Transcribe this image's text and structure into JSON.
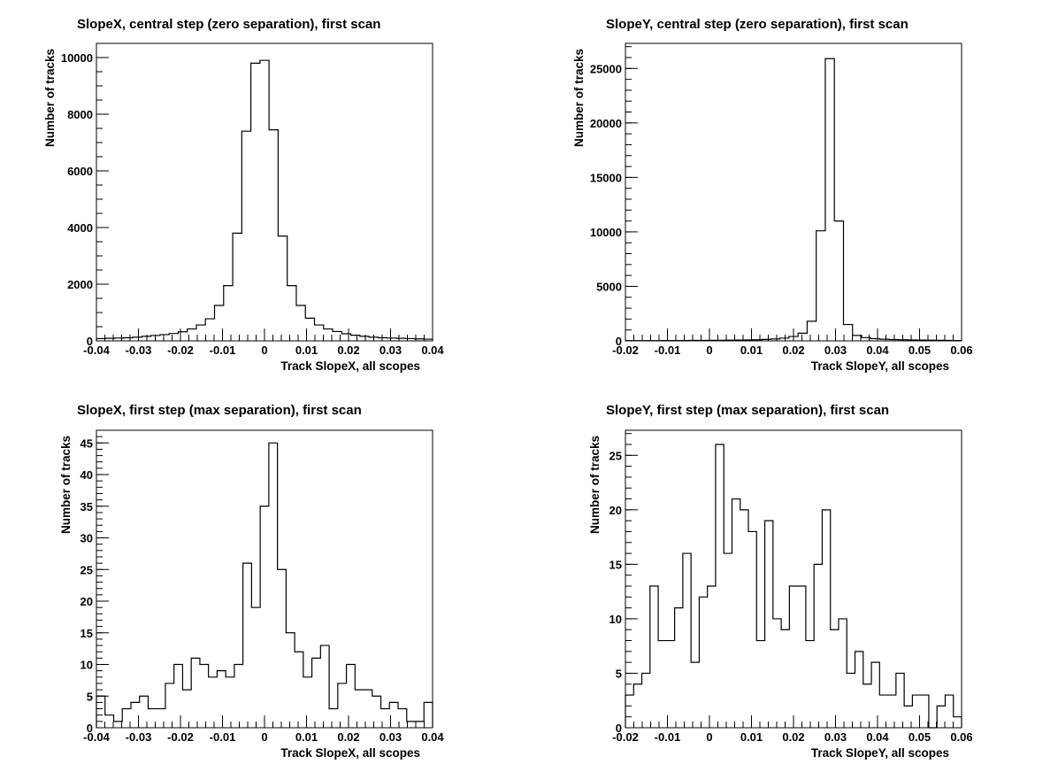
{
  "chart_data": [
    {
      "type": "bar",
      "title": "SlopeX, central step (zero separation), first scan",
      "xlabel": "Track SlopeX, all scopes",
      "ylabel": "Number of tracks",
      "xlim": [
        -0.04,
        0.04
      ],
      "ylim": [
        0,
        10500
      ],
      "xticks": [
        -0.04,
        -0.03,
        -0.02,
        -0.01,
        0,
        0.01,
        0.02,
        0.03,
        0.04
      ],
      "xtick_labels": [
        "-0.04",
        "-0.03",
        "-0.02",
        "-0.01",
        "0",
        "0.01",
        "0.02",
        "0.03",
        "0.04"
      ],
      "yticks": [
        0,
        2000,
        4000,
        6000,
        8000,
        10000
      ],
      "ytick_labels": [
        "0",
        "2000",
        "4000",
        "6000",
        "8000",
        "10000"
      ],
      "yminor": 500,
      "xminor": 0.002,
      "bin_edges_range": [
        -0.04,
        0.04
      ],
      "values": [
        80,
        90,
        100,
        110,
        130,
        160,
        190,
        220,
        260,
        320,
        420,
        560,
        780,
        1250,
        1950,
        3800,
        7400,
        9800,
        9900,
        7450,
        3700,
        1950,
        1250,
        800,
        560,
        420,
        330,
        250,
        200,
        160,
        130,
        110,
        100,
        90,
        80,
        70,
        60
      ]
    },
    {
      "type": "bar",
      "title": "SlopeY, central step (zero separation), first scan",
      "xlabel": "Track SlopeY, all scopes",
      "ylabel": "Number of tracks",
      "xlim": [
        -0.02,
        0.06
      ],
      "ylim": [
        0,
        27300
      ],
      "xticks": [
        -0.02,
        -0.01,
        0,
        0.01,
        0.02,
        0.03,
        0.04,
        0.05,
        0.06
      ],
      "xtick_labels": [
        "-0.02",
        "-0.01",
        "0",
        "0.01",
        "0.02",
        "0.03",
        "0.04",
        "0.05",
        "0.06"
      ],
      "yticks": [
        0,
        5000,
        10000,
        15000,
        20000,
        25000
      ],
      "ytick_labels": [
        "0",
        "5000",
        "10000",
        "15000",
        "20000",
        "25000"
      ],
      "yminor": 1000,
      "xminor": 0.002,
      "bin_edges_range": [
        -0.02,
        0.06
      ],
      "values": [
        20,
        20,
        25,
        25,
        30,
        30,
        35,
        40,
        40,
        50,
        50,
        60,
        70,
        80,
        100,
        130,
        170,
        250,
        400,
        700,
        1800,
        10100,
        25900,
        11000,
        1500,
        500,
        300,
        200,
        150,
        120,
        100,
        80,
        70,
        60,
        50,
        40,
        30
      ]
    },
    {
      "type": "bar",
      "title": "SlopeX, first step (max separation), first scan",
      "xlabel": "Track SlopeX, all scopes",
      "ylabel": "Number of tracks",
      "xlim": [
        -0.04,
        0.04
      ],
      "ylim": [
        0,
        47
      ],
      "xticks": [
        -0.04,
        -0.03,
        -0.02,
        -0.01,
        0,
        0.01,
        0.02,
        0.03,
        0.04
      ],
      "xtick_labels": [
        "-0.04",
        "-0.03",
        "-0.02",
        "-0.01",
        "0",
        "0.01",
        "0.02",
        "0.03",
        "0.04"
      ],
      "yticks": [
        0,
        5,
        10,
        15,
        20,
        25,
        30,
        35,
        40,
        45
      ],
      "ytick_labels": [
        "0",
        "5",
        "10",
        "15",
        "20",
        "25",
        "30",
        "35",
        "40",
        "45"
      ],
      "yminor": 1,
      "xminor": 0.002,
      "bin_edges_range": [
        -0.04,
        0.04
      ],
      "values": [
        5,
        2,
        1,
        3,
        4,
        5,
        3,
        3,
        7,
        10,
        6,
        11,
        10,
        8,
        9,
        8,
        10,
        26,
        19,
        35,
        45,
        25,
        15,
        12,
        8,
        11,
        13,
        3,
        7,
        10,
        6,
        6,
        5,
        3,
        4,
        3,
        1,
        1,
        4
      ]
    },
    {
      "type": "bar",
      "title": "SlopeY, first step (max separation), first scan",
      "xlabel": "Track SlopeY, all scopes",
      "ylabel": "Number of tracks",
      "xlim": [
        -0.02,
        0.06
      ],
      "ylim": [
        0,
        27.3
      ],
      "xticks": [
        -0.02,
        -0.01,
        0,
        0.01,
        0.02,
        0.03,
        0.04,
        0.05,
        0.06
      ],
      "xtick_labels": [
        "-0.02",
        "-0.01",
        "0",
        "0.01",
        "0.02",
        "0.03",
        "0.04",
        "0.05",
        "0.06"
      ],
      "yticks": [
        0,
        5,
        10,
        15,
        20,
        25
      ],
      "ytick_labels": [
        "0",
        "5",
        "10",
        "15",
        "20",
        "25"
      ],
      "yminor": 1,
      "xminor": 0.002,
      "bin_edges_range": [
        -0.02,
        0.06
      ],
      "values": [
        3,
        4,
        5,
        13,
        8,
        8,
        11,
        16,
        6,
        12,
        13,
        26,
        16,
        21,
        20,
        18,
        8,
        19,
        10,
        9,
        13,
        13,
        8,
        15,
        20,
        9,
        10,
        5,
        7,
        4,
        6,
        3,
        3,
        5,
        2,
        3,
        3,
        0,
        2,
        3,
        1
      ]
    }
  ]
}
